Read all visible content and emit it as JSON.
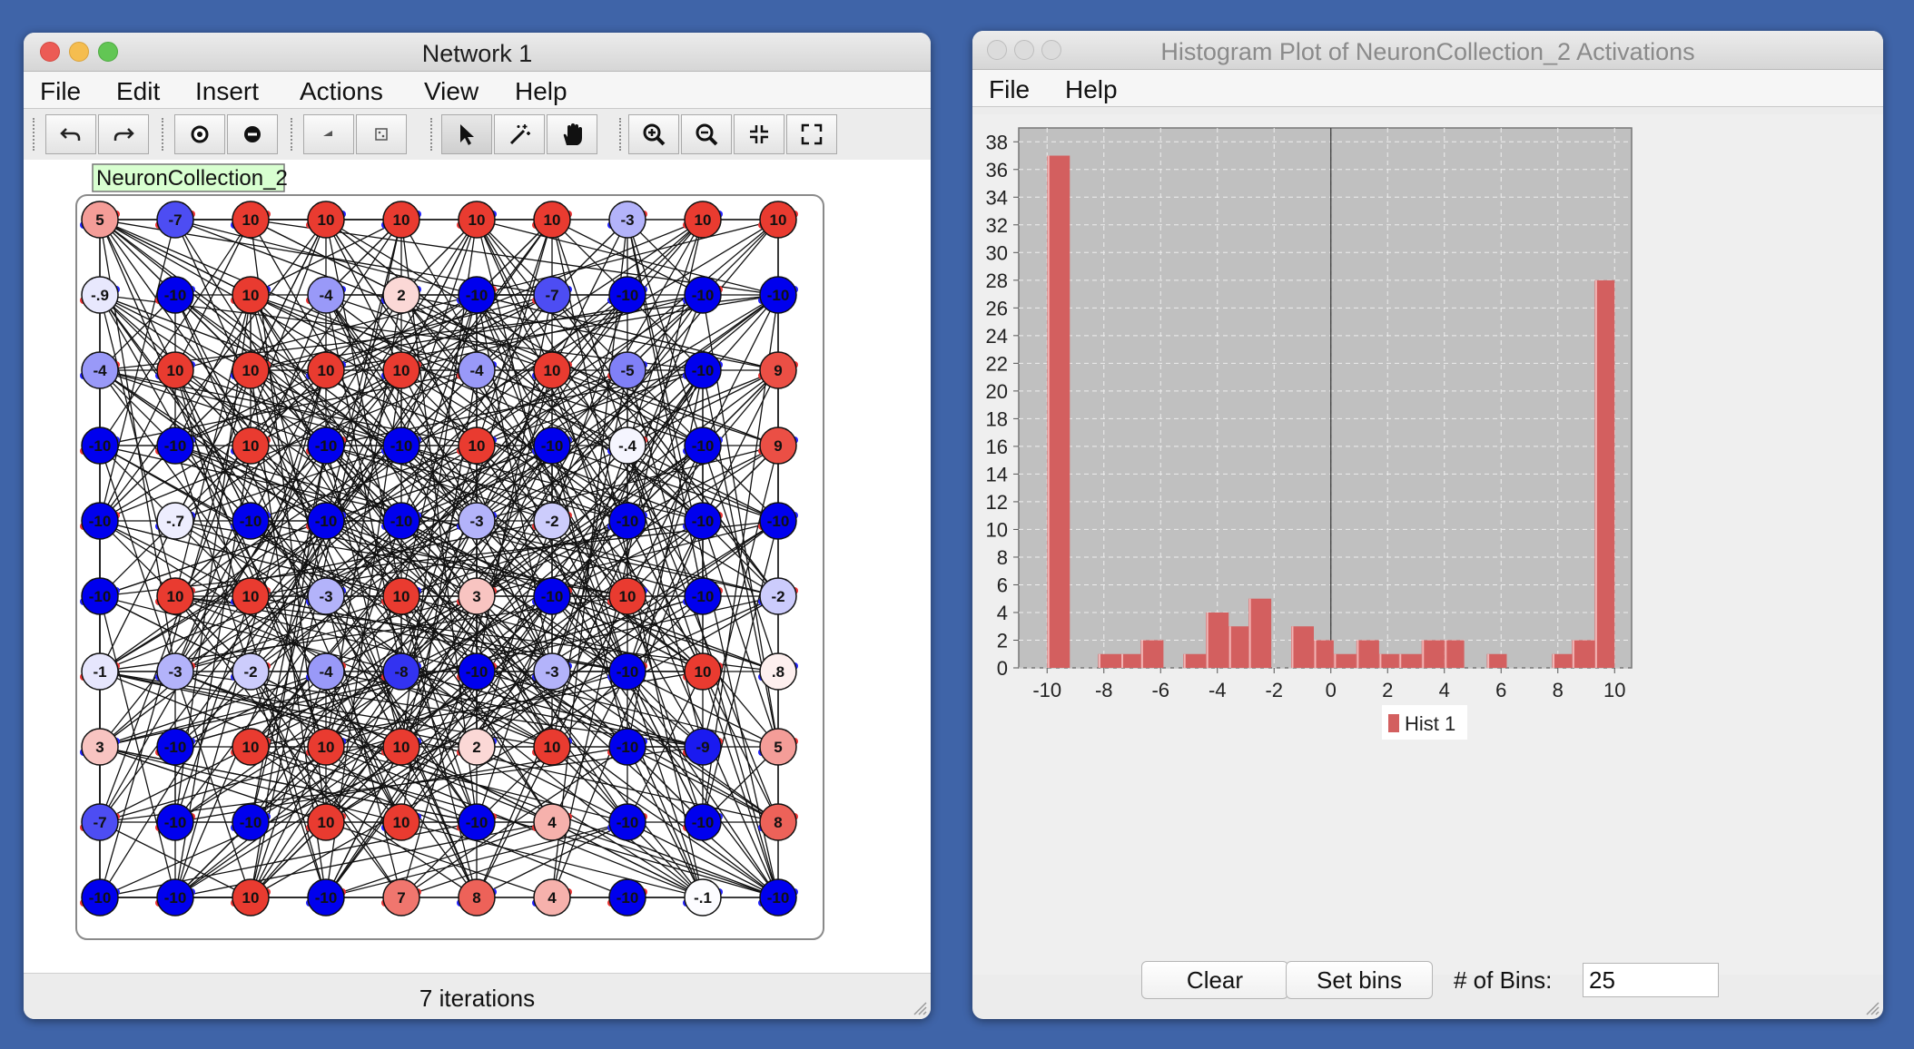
{
  "network_window": {
    "title": "Network 1",
    "menu": [
      "File",
      "Edit",
      "Insert",
      "Actions",
      "View",
      "Help"
    ],
    "toolbar_icons": [
      "undo-icon",
      "redo-icon",
      "add-neuron-icon",
      "delete-neuron-icon",
      "clamp-weights-icon",
      "clamp-neurons-icon",
      "select-icon",
      "wand-icon",
      "pan-icon",
      "zoom-in-icon",
      "zoom-out-icon",
      "fit-to-screen-icon",
      "full-screen-icon"
    ],
    "collection_label": "NeuronCollection_2",
    "neuron_rows": [
      [
        "5",
        "-7",
        "10",
        "10",
        "10",
        "10",
        "10",
        "-3",
        "10",
        "10"
      ],
      [
        "-.9",
        "-10",
        "10",
        "-4",
        "2",
        "-10",
        "-7",
        "-10",
        "-10",
        "-10"
      ],
      [
        "-4",
        "10",
        "10",
        "10",
        "10",
        "-4",
        "10",
        "-5",
        "-10",
        "9"
      ],
      [
        "-10",
        "-10",
        "10",
        "-10",
        "-10",
        "10",
        "-10",
        "-.4",
        "-10",
        "9"
      ],
      [
        "-10",
        "-.7",
        "-10",
        "-10",
        "-10",
        "-3",
        "-2",
        "-10",
        "-10",
        "-10"
      ],
      [
        "-10",
        "10",
        "10",
        "-3",
        "10",
        "3",
        "-10",
        "10",
        "-10",
        "-2"
      ],
      [
        "-1",
        "-3",
        "-2",
        "-4",
        "-8",
        "-10",
        "-3",
        "-10",
        "10",
        ".8"
      ],
      [
        "3",
        "-10",
        "10",
        "10",
        "10",
        "2",
        "10",
        "-10",
        "-9",
        "5"
      ],
      [
        "-7",
        "-10",
        "-10",
        "10",
        "10",
        "-10",
        "4",
        "-10",
        "-10",
        "8"
      ],
      [
        "-10",
        "-10",
        "10",
        "-10",
        "7",
        "8",
        "4",
        "-10",
        "-.1",
        "-10"
      ]
    ],
    "status": "7 iterations"
  },
  "histogram_window": {
    "title": "Histogram Plot of NeuronCollection_2 Activations",
    "menu": [
      "File",
      "Help"
    ],
    "clear_label": "Clear",
    "set_bins_label": "Set bins",
    "bins_label": "# of Bins:",
    "bins_value": "25"
  },
  "chart_data": {
    "type": "bar",
    "title": "",
    "xlabel": "",
    "ylabel": "",
    "xlim": [
      -11,
      10.6
    ],
    "ylim": [
      0,
      39
    ],
    "x_ticks": [
      -10,
      -8,
      -6,
      -4,
      -2,
      0,
      2,
      4,
      6,
      8,
      10
    ],
    "y_ticks": [
      0,
      2,
      4,
      6,
      8,
      10,
      12,
      14,
      16,
      18,
      20,
      22,
      24,
      26,
      28,
      30,
      32,
      34,
      36,
      38
    ],
    "grid": true,
    "legend_position": "bottom-center",
    "bar_color": "#d35f5f",
    "series": [
      {
        "name": "Hist 1",
        "bins": [
          {
            "x0": -10.0,
            "x1": -9.2,
            "count": 37
          },
          {
            "x0": -8.2,
            "x1": -7.4,
            "count": 1
          },
          {
            "x0": -7.4,
            "x1": -6.7,
            "count": 1
          },
          {
            "x0": -6.7,
            "x1": -5.9,
            "count": 2
          },
          {
            "x0": -5.2,
            "x1": -4.4,
            "count": 1
          },
          {
            "x0": -4.4,
            "x1": -3.6,
            "count": 4
          },
          {
            "x0": -3.6,
            "x1": -2.9,
            "count": 3
          },
          {
            "x0": -2.9,
            "x1": -2.1,
            "count": 5
          },
          {
            "x0": -1.4,
            "x1": -0.6,
            "count": 3
          },
          {
            "x0": -0.6,
            "x1": 0.1,
            "count": 2
          },
          {
            "x0": 0.1,
            "x1": 0.9,
            "count": 1
          },
          {
            "x0": 0.9,
            "x1": 1.7,
            "count": 2
          },
          {
            "x0": 1.7,
            "x1": 2.4,
            "count": 1
          },
          {
            "x0": 2.4,
            "x1": 3.2,
            "count": 1
          },
          {
            "x0": 3.2,
            "x1": 4.0,
            "count": 2
          },
          {
            "x0": 4.0,
            "x1": 4.7,
            "count": 2
          },
          {
            "x0": 5.5,
            "x1": 6.2,
            "count": 1
          },
          {
            "x0": 7.8,
            "x1": 8.5,
            "count": 1
          },
          {
            "x0": 8.5,
            "x1": 9.3,
            "count": 2
          },
          {
            "x0": 9.3,
            "x1": 10.0,
            "count": 28
          }
        ]
      }
    ]
  }
}
